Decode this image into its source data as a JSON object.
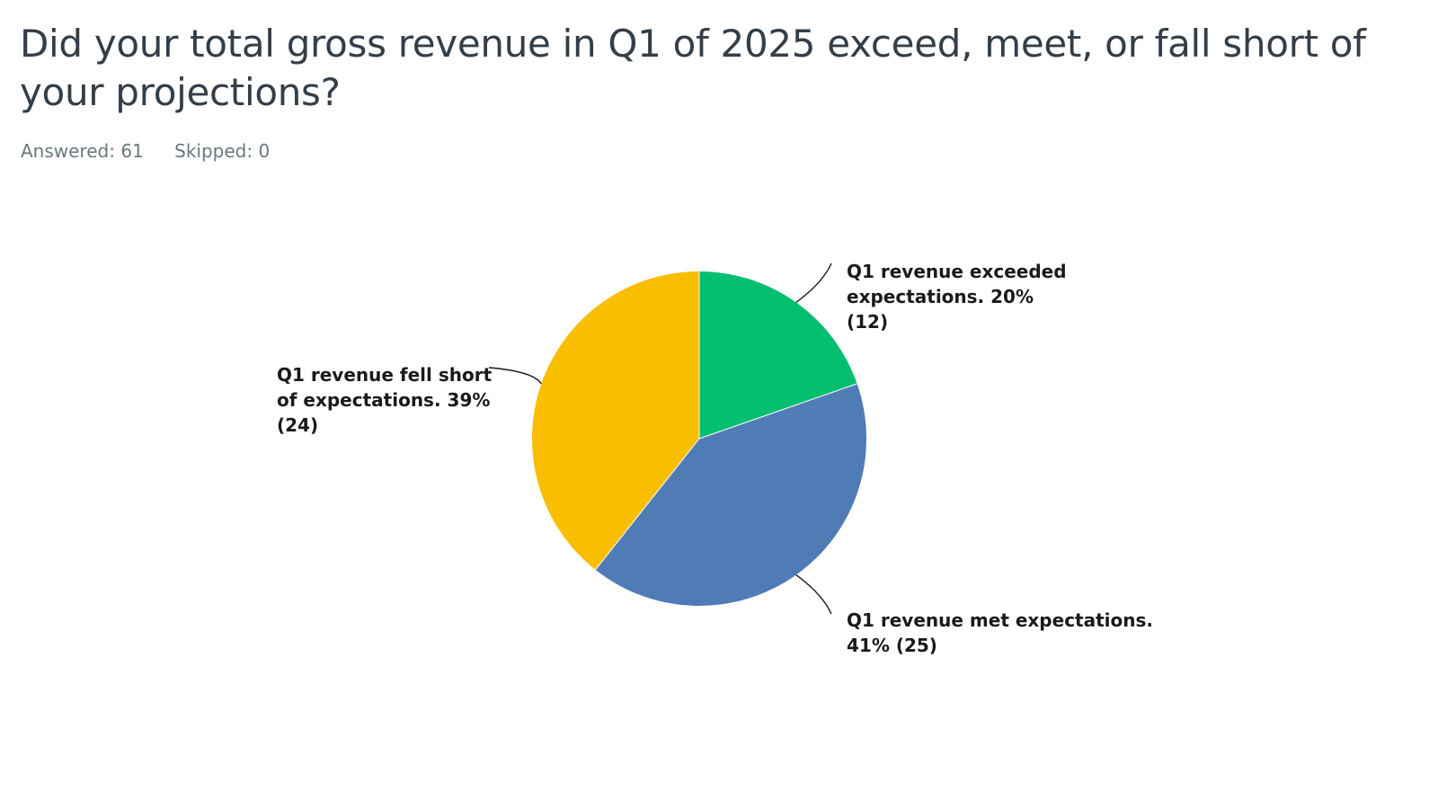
{
  "question": {
    "title": "Did your total gross revenue in Q1 of 2025 exceed, meet, or fall short of your projections?",
    "answered": "Answered: 61",
    "skipped": "Skipped: 0"
  },
  "chart_data": {
    "type": "pie",
    "title": "",
    "slices": [
      {
        "category": "Q1 revenue exceeded expectations.",
        "percent": 20,
        "count": 12,
        "color": "#05bf70",
        "label_lines": [
          "Q1 revenue exceeded",
          "expectations. 20%",
          "(12)"
        ]
      },
      {
        "category": "Q1 revenue met expectations.",
        "percent": 41,
        "count": 25,
        "color": "#507cb6",
        "label_lines": [
          "Q1 revenue met expectations.",
          "41% (25)"
        ]
      },
      {
        "category": "Q1 revenue fell short of expectations.",
        "percent": 39,
        "count": 24,
        "color": "#f9be00",
        "label_lines": [
          "Q1 revenue fell short",
          "of expectations. 39%",
          "(24)"
        ]
      }
    ]
  }
}
